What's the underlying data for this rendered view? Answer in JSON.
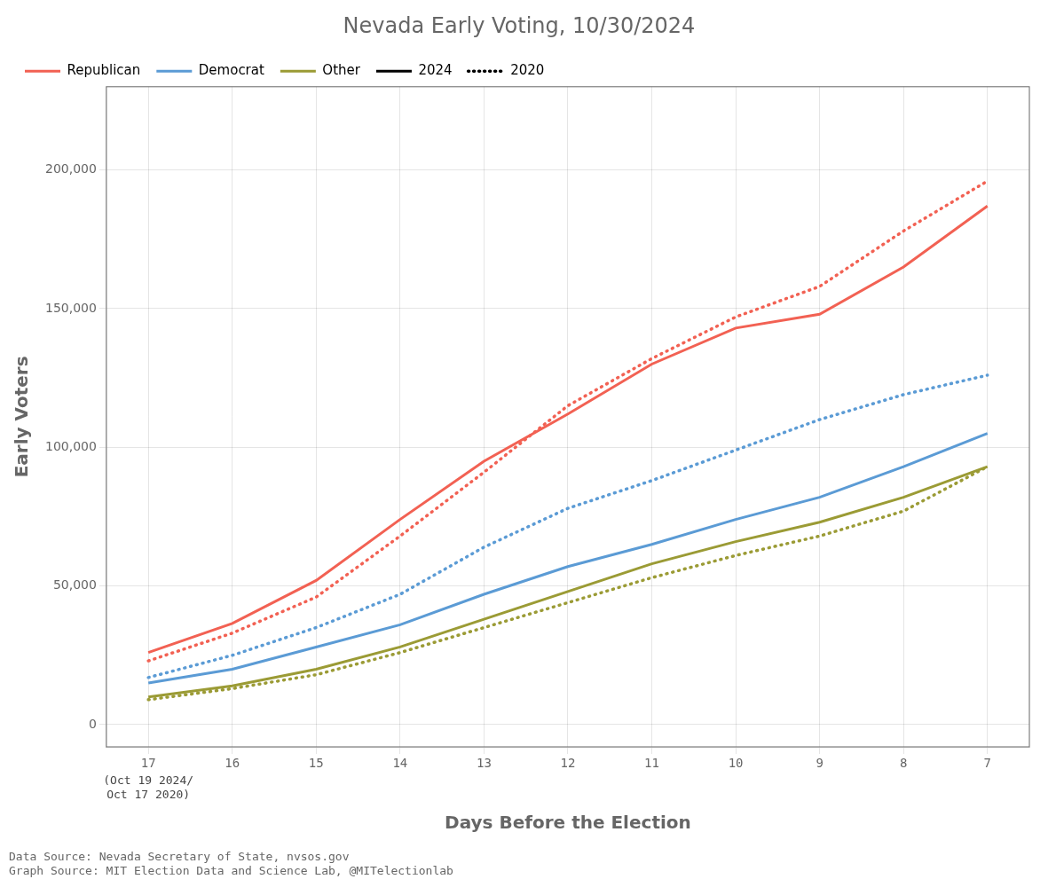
{
  "chart_data": {
    "type": "line",
    "title": "Nevada Early Voting, 10/30/2024",
    "xlabel": "Days Before the Election",
    "ylabel": "Early Voters",
    "x": [
      17,
      16,
      15,
      14,
      13,
      12,
      11,
      10,
      9,
      8,
      7
    ],
    "series": [
      {
        "name": "Republican",
        "year": "2024",
        "color": "#F26153",
        "line_style": "solid",
        "values": [
          26000,
          36500,
          52000,
          74000,
          95000,
          112000,
          130000,
          143000,
          148000,
          165000,
          187000
        ]
      },
      {
        "name": "Democrat",
        "year": "2024",
        "color": "#5B9BD5",
        "line_style": "solid",
        "values": [
          15000,
          20000,
          28000,
          36000,
          47000,
          57000,
          65000,
          74000,
          82000,
          93000,
          105000
        ]
      },
      {
        "name": "Other",
        "year": "2024",
        "color": "#9B9B35",
        "line_style": "solid",
        "values": [
          10000,
          14000,
          20000,
          28000,
          38000,
          48000,
          58000,
          66000,
          73000,
          82000,
          93000
        ]
      },
      {
        "name": "Republican",
        "year": "2020",
        "color": "#F26153",
        "line_style": "dotted",
        "values": [
          23000,
          33000,
          46000,
          68000,
          91000,
          115000,
          132000,
          147000,
          158000,
          178000,
          196000
        ]
      },
      {
        "name": "Democrat",
        "year": "2020",
        "color": "#5B9BD5",
        "line_style": "dotted",
        "values": [
          17000,
          25000,
          35000,
          47000,
          64000,
          78000,
          88000,
          99000,
          110000,
          119000,
          126000
        ]
      },
      {
        "name": "Other",
        "year": "2020",
        "color": "#9B9B35",
        "line_style": "dotted",
        "values": [
          9000,
          13000,
          18000,
          26000,
          35000,
          44000,
          53000,
          61000,
          68000,
          77000,
          93000
        ]
      }
    ],
    "xlim": [
      17.5,
      6.5
    ],
    "xticks": [
      17,
      16,
      15,
      14,
      13,
      12,
      11,
      10,
      9,
      8,
      7
    ],
    "ylim": [
      -8000,
      230000
    ],
    "yticks": [
      0,
      {
        "value": 50000,
        "label": "50,000"
      },
      {
        "value": 100000,
        "label": "100,000"
      },
      {
        "value": 150000,
        "label": "150,000"
      },
      {
        "value": 200000,
        "label": "200,000"
      }
    ],
    "grid": true,
    "legend": "upper left",
    "annotations": [
      {
        "text": "(Oct 19 2024/\nOct 17 2020)",
        "x": 17
      }
    ],
    "footnotes": [
      "Data Source: Nevada Secretary of State, nvsos.gov",
      "Graph Source: MIT Election Data and Science Lab, @MITelectionlab"
    ]
  }
}
